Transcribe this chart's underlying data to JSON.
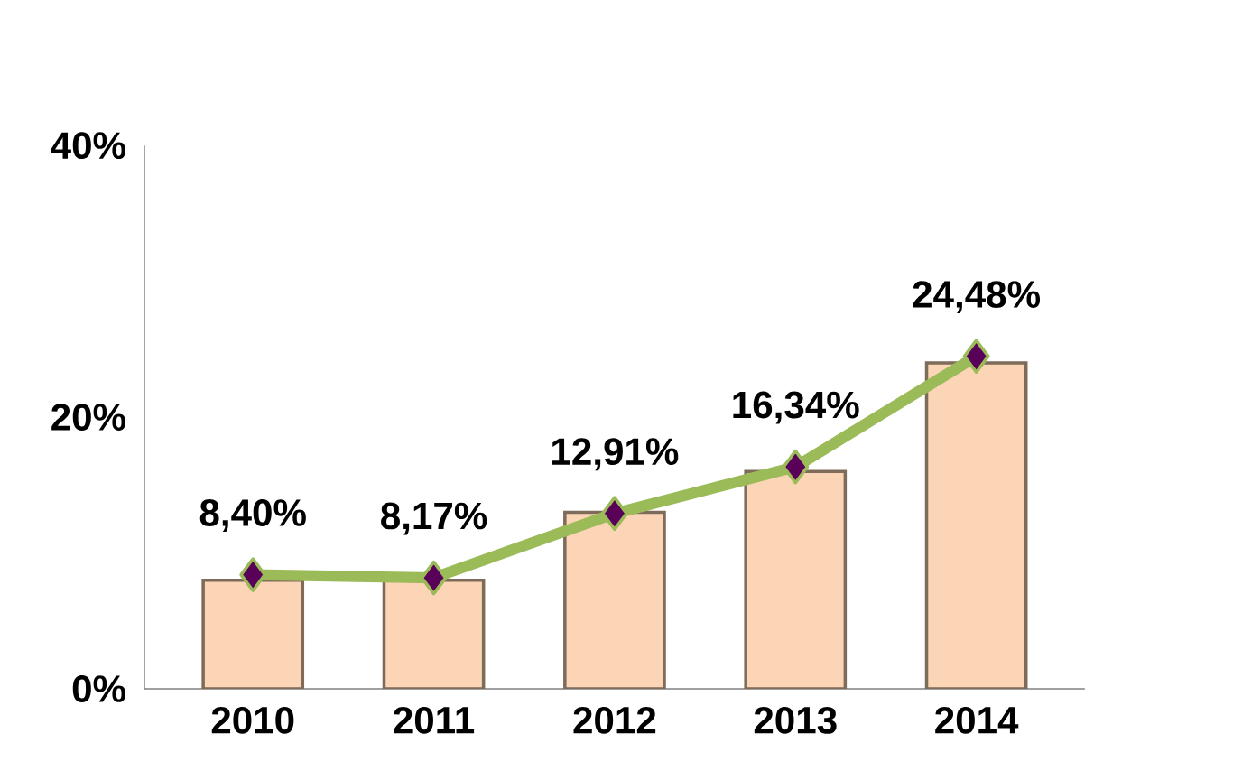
{
  "chart_data": {
    "type": "bar",
    "categories": [
      "2010",
      "2011",
      "2012",
      "2013",
      "2014"
    ],
    "series": [
      {
        "color": "#fbd5b5",
        "values": [
          8,
          8,
          13,
          16,
          24
        ]
      },
      {
        "type": "line",
        "color": "#9bbb59",
        "values": [
          8.4,
          8.17,
          12.91,
          16.34,
          24.48
        ],
        "value_labels": [
          "8,40%",
          "8,17%",
          "12,91%",
          "16,34%",
          "24,48%"
        ]
      }
    ],
    "ylim": [
      0,
      40
    ],
    "yticks": [
      {
        "value": 0,
        "label": "0%"
      },
      {
        "value": 20,
        "label": "20%"
      },
      {
        "value": 40,
        "label": "40%"
      }
    ],
    "marker": "diamond"
  }
}
